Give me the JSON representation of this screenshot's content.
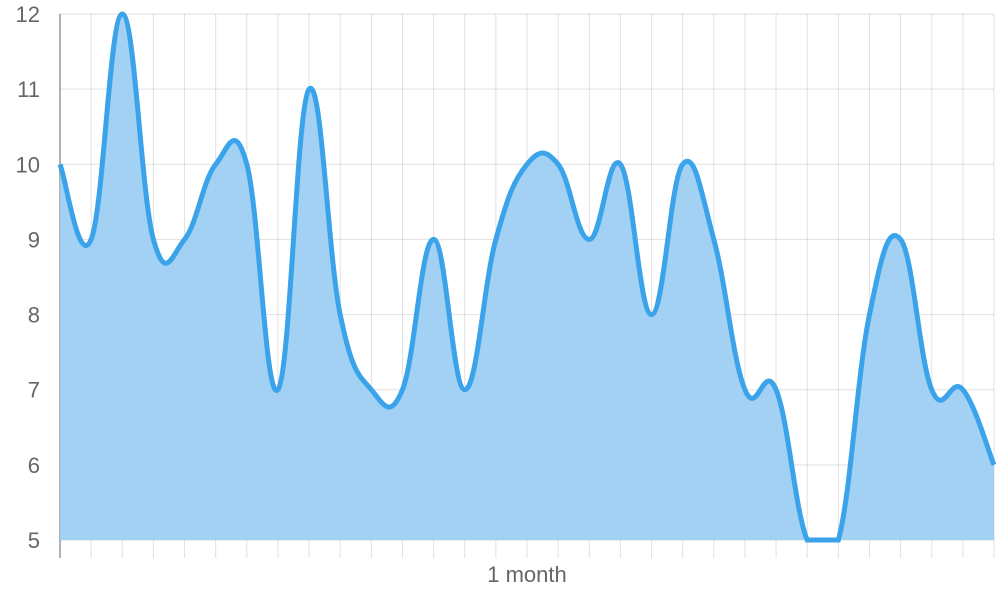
{
  "chart_data": {
    "type": "area",
    "title": "",
    "xlabel": "1 month",
    "ylabel": "",
    "ylim": [
      5,
      12
    ],
    "yticks": [
      "5",
      "6",
      "7",
      "8",
      "9",
      "10",
      "11",
      "12"
    ],
    "grid": true,
    "legend": "none",
    "colors": {
      "line": "#3ba3ea",
      "fill": "#9dcff3"
    },
    "series": [
      {
        "values": [
          10,
          9,
          12,
          9,
          9,
          10,
          10,
          7,
          11,
          8,
          7,
          7,
          9,
          7,
          9,
          10,
          10,
          9,
          10,
          8,
          10,
          9,
          7,
          7,
          5,
          5,
          8,
          9,
          7,
          7,
          6
        ]
      }
    ]
  }
}
